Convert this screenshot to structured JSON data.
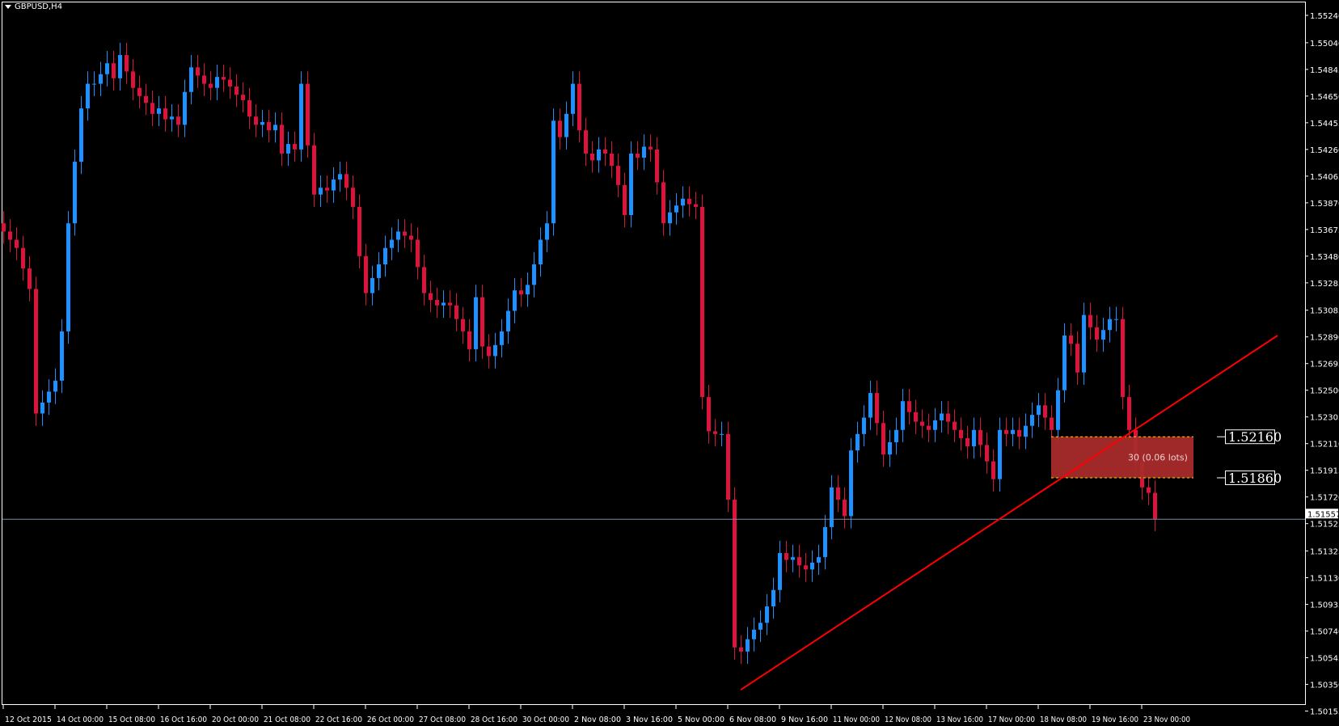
{
  "header": {
    "symbol_timeframe": "GBPUSD,H4"
  },
  "colors": {
    "background": "#000000",
    "bull": "#1e90ff",
    "bear": "#dc143c",
    "trendline": "#ff0000",
    "zone": "#a82b2b",
    "zone_border": "#ffd700",
    "price_line": "#7b8ca6",
    "axis": "#ffffff"
  },
  "chart_data": {
    "type": "candlestick",
    "title": "GBPUSD,H4",
    "ylim": [
      1.50155,
      1.5524
    ],
    "grid": false,
    "y_ticks": [
      "1.55240",
      "1.55040",
      "1.54845",
      "1.54650",
      "1.54455",
      "1.54260",
      "1.54065",
      "1.53870",
      "1.53675",
      "1.53480",
      "1.53285",
      "1.53085",
      "1.52890",
      "1.52695",
      "1.52500",
      "1.52305",
      "1.52110",
      "1.51915",
      "1.51720",
      "1.51525",
      "1.51325",
      "1.51130",
      "1.50935",
      "1.50740",
      "1.50545",
      "1.50350",
      "1.50155"
    ],
    "x_ticks": [
      "12 Oct 2015",
      "14 Oct 00:00",
      "15 Oct 08:00",
      "16 Oct 16:00",
      "20 Oct 00:00",
      "21 Oct 08:00",
      "22 Oct 16:00",
      "26 Oct 00:00",
      "27 Oct 08:00",
      "28 Oct 16:00",
      "30 Oct 00:00",
      "2 Nov 08:00",
      "3 Nov 16:00",
      "5 Nov 00:00",
      "6 Nov 08:00",
      "9 Nov 16:00",
      "11 Nov 00:00",
      "12 Nov 08:00",
      "13 Nov 16:00",
      "17 Nov 00:00",
      "18 Nov 08:00",
      "19 Nov 16:00",
      "23 Nov 00:00"
    ],
    "close": [
      1.5366,
      1.536,
      1.5354,
      1.5339,
      1.5324,
      1.5233,
      1.5241,
      1.5249,
      1.5257,
      1.5293,
      1.5372,
      1.5417,
      1.5456,
      1.5474,
      1.5474,
      1.5481,
      1.5489,
      1.5478,
      1.5495,
      1.5483,
      1.5471,
      1.5465,
      1.546,
      1.5452,
      1.5456,
      1.5448,
      1.545,
      1.5444,
      1.5468,
      1.5486,
      1.548,
      1.5474,
      1.5471,
      1.5479,
      1.5477,
      1.5472,
      1.5466,
      1.5462,
      1.545,
      1.5444,
      1.5446,
      1.544,
      1.5444,
      1.5423,
      1.543,
      1.5426,
      1.5474,
      1.5429,
      1.5393,
      1.5398,
      1.5396,
      1.5404,
      1.5408,
      1.5398,
      1.5384,
      1.5348,
      1.5321,
      1.5332,
      1.5342,
      1.5354,
      1.536,
      1.5366,
      1.5363,
      1.536,
      1.534,
      1.5321,
      1.5316,
      1.5312,
      1.5314,
      1.5312,
      1.5302,
      1.5293,
      1.528,
      1.5318,
      1.5282,
      1.5275,
      1.5283,
      1.5293,
      1.5308,
      1.5323,
      1.532,
      1.5327,
      1.5342,
      1.536,
      1.5372,
      1.5447,
      1.5435,
      1.5452,
      1.5474,
      1.544,
      1.5423,
      1.5418,
      1.5426,
      1.5423,
      1.5414,
      1.54,
      1.5378,
      1.5423,
      1.542,
      1.5428,
      1.5426,
      1.5402,
      1.5372,
      1.538,
      1.5385,
      1.539,
      1.5386,
      1.5384,
      1.5245,
      1.522,
      1.5218,
      1.5218,
      1.517,
      1.5062,
      1.5059,
      1.5068,
      1.5075,
      1.508,
      1.5092,
      1.5104,
      1.5131,
      1.5126,
      1.5128,
      1.5122,
      1.5119,
      1.5124,
      1.5128,
      1.515,
      1.5179,
      1.517,
      1.5158,
      1.5206,
      1.5218,
      1.523,
      1.5248,
      1.5226,
      1.5203,
      1.5212,
      1.5221,
      1.5242,
      1.5234,
      1.5227,
      1.5224,
      1.5221,
      1.5228,
      1.5233,
      1.5227,
      1.5221,
      1.5215,
      1.5209,
      1.5221,
      1.521,
      1.5198,
      1.5185,
      1.5221,
      1.5218,
      1.5221,
      1.5216,
      1.5224,
      1.5232,
      1.5239,
      1.523,
      1.5221,
      1.525,
      1.529,
      1.5284,
      1.5263,
      1.5305,
      1.5296,
      1.5287,
      1.5294,
      1.5302,
      1.5302,
      1.5245,
      1.5221,
      1.5197,
      1.5179,
      1.5175,
      1.5156
    ],
    "current_price": "1.51557",
    "trendline": {
      "from": {
        "bar": 114,
        "price": 1.5031
      },
      "to": {
        "bar": 197,
        "price": 1.529
      }
    },
    "zone": {
      "from_bar": 162,
      "to_bar": 184,
      "upper": "1.52160",
      "lower": "1.51860",
      "label": "30 (0.06 lots)"
    }
  }
}
